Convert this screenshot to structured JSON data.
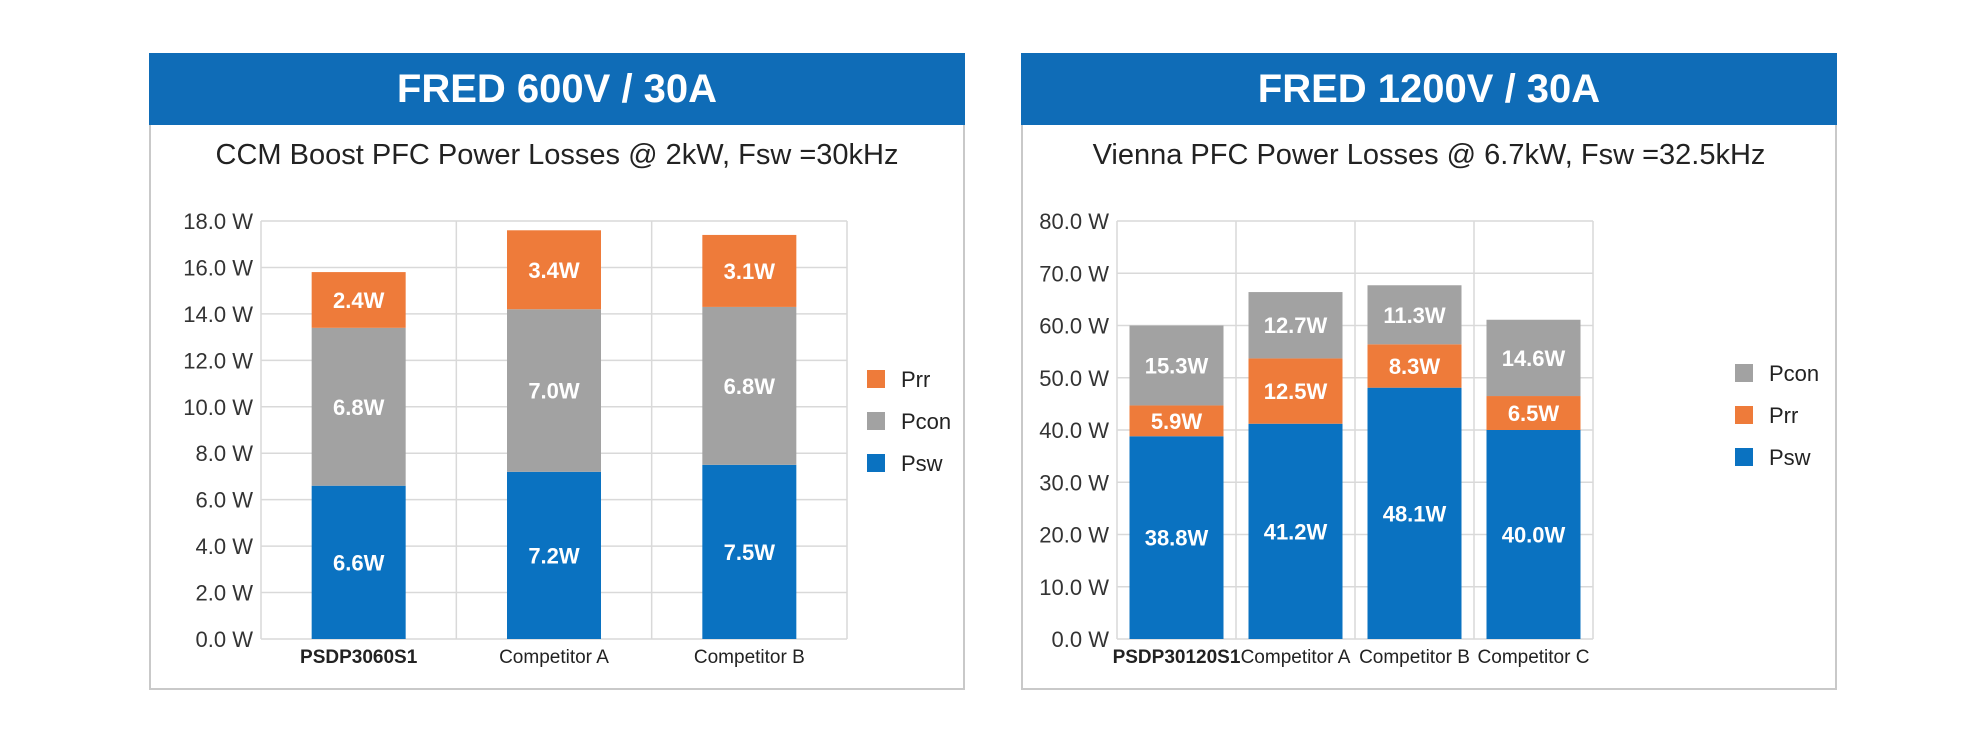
{
  "panels": [
    {
      "header": "FRED 600V / 30A",
      "subtitle": "CCM Boost PFC Power Losses @ 2kW, Fsw =30kHz"
    },
    {
      "header": "FRED 1200V / 30A",
      "subtitle": "Vienna PFC Power Losses @ 6.7kW, Fsw =32.5kHz"
    }
  ],
  "chart_data": [
    {
      "type": "bar",
      "stacked": true,
      "title": "CCM Boost PFC Power Losses @ 2kW, Fsw =30kHz",
      "categories": [
        "PSDP3060S1",
        "Competitor A",
        "Competitor B"
      ],
      "highlight_category": "PSDP3060S1",
      "ylim": [
        0,
        18
      ],
      "yticks": [
        "0.0 W",
        "2.0 W",
        "4.0 W",
        "6.0 W",
        "8.0 W",
        "10.0 W",
        "12.0 W",
        "14.0 W",
        "16.0 W",
        "18.0 W"
      ],
      "grid": true,
      "legend_position": "right",
      "legend_order": [
        "Prr",
        "Pcon",
        "Psw"
      ],
      "series": [
        {
          "name": "Psw",
          "color": "#0a72c1",
          "values": [
            6.6,
            7.2,
            7.5
          ],
          "labels": [
            "6.6W",
            "7.2W",
            "7.5W"
          ]
        },
        {
          "name": "Pcon",
          "color": "#a2a2a2",
          "values": [
            6.8,
            7.0,
            6.8
          ],
          "labels": [
            "6.8W",
            "7.0W",
            "6.8W"
          ]
        },
        {
          "name": "Prr",
          "color": "#ee7b3a",
          "values": [
            2.4,
            3.4,
            3.1
          ],
          "labels": [
            "2.4W",
            "3.4W",
            "3.1W"
          ]
        }
      ]
    },
    {
      "type": "bar",
      "stacked": true,
      "title": "Vienna PFC Power Losses @ 6.7kW, Fsw =32.5kHz",
      "categories": [
        "PSDP30120S1",
        "Competitor A",
        "Competitor B",
        "Competitor C"
      ],
      "highlight_category": "PSDP30120S1",
      "ylim": [
        0,
        80
      ],
      "yticks": [
        "0.0 W",
        "10.0 W",
        "20.0 W",
        "30.0 W",
        "40.0 W",
        "50.0 W",
        "60.0 W",
        "70.0 W",
        "80.0 W"
      ],
      "grid": true,
      "legend_position": "right",
      "legend_order": [
        "Pcon",
        "Prr",
        "Psw"
      ],
      "series": [
        {
          "name": "Psw",
          "color": "#0a72c1",
          "values": [
            38.8,
            41.2,
            48.1,
            40.0
          ],
          "labels": [
            "38.8W",
            "41.2W",
            "48.1W",
            "40.0W"
          ]
        },
        {
          "name": "Prr",
          "color": "#ee7b3a",
          "values": [
            5.9,
            12.5,
            8.3,
            6.5
          ],
          "labels": [
            "5.9W",
            "12.5W",
            "8.3W",
            "6.5W"
          ]
        },
        {
          "name": "Pcon",
          "color": "#a2a2a2",
          "values": [
            15.3,
            12.7,
            11.3,
            14.6
          ],
          "labels": [
            "15.3W",
            "12.7W",
            "11.3W",
            "14.6W"
          ]
        }
      ]
    }
  ]
}
